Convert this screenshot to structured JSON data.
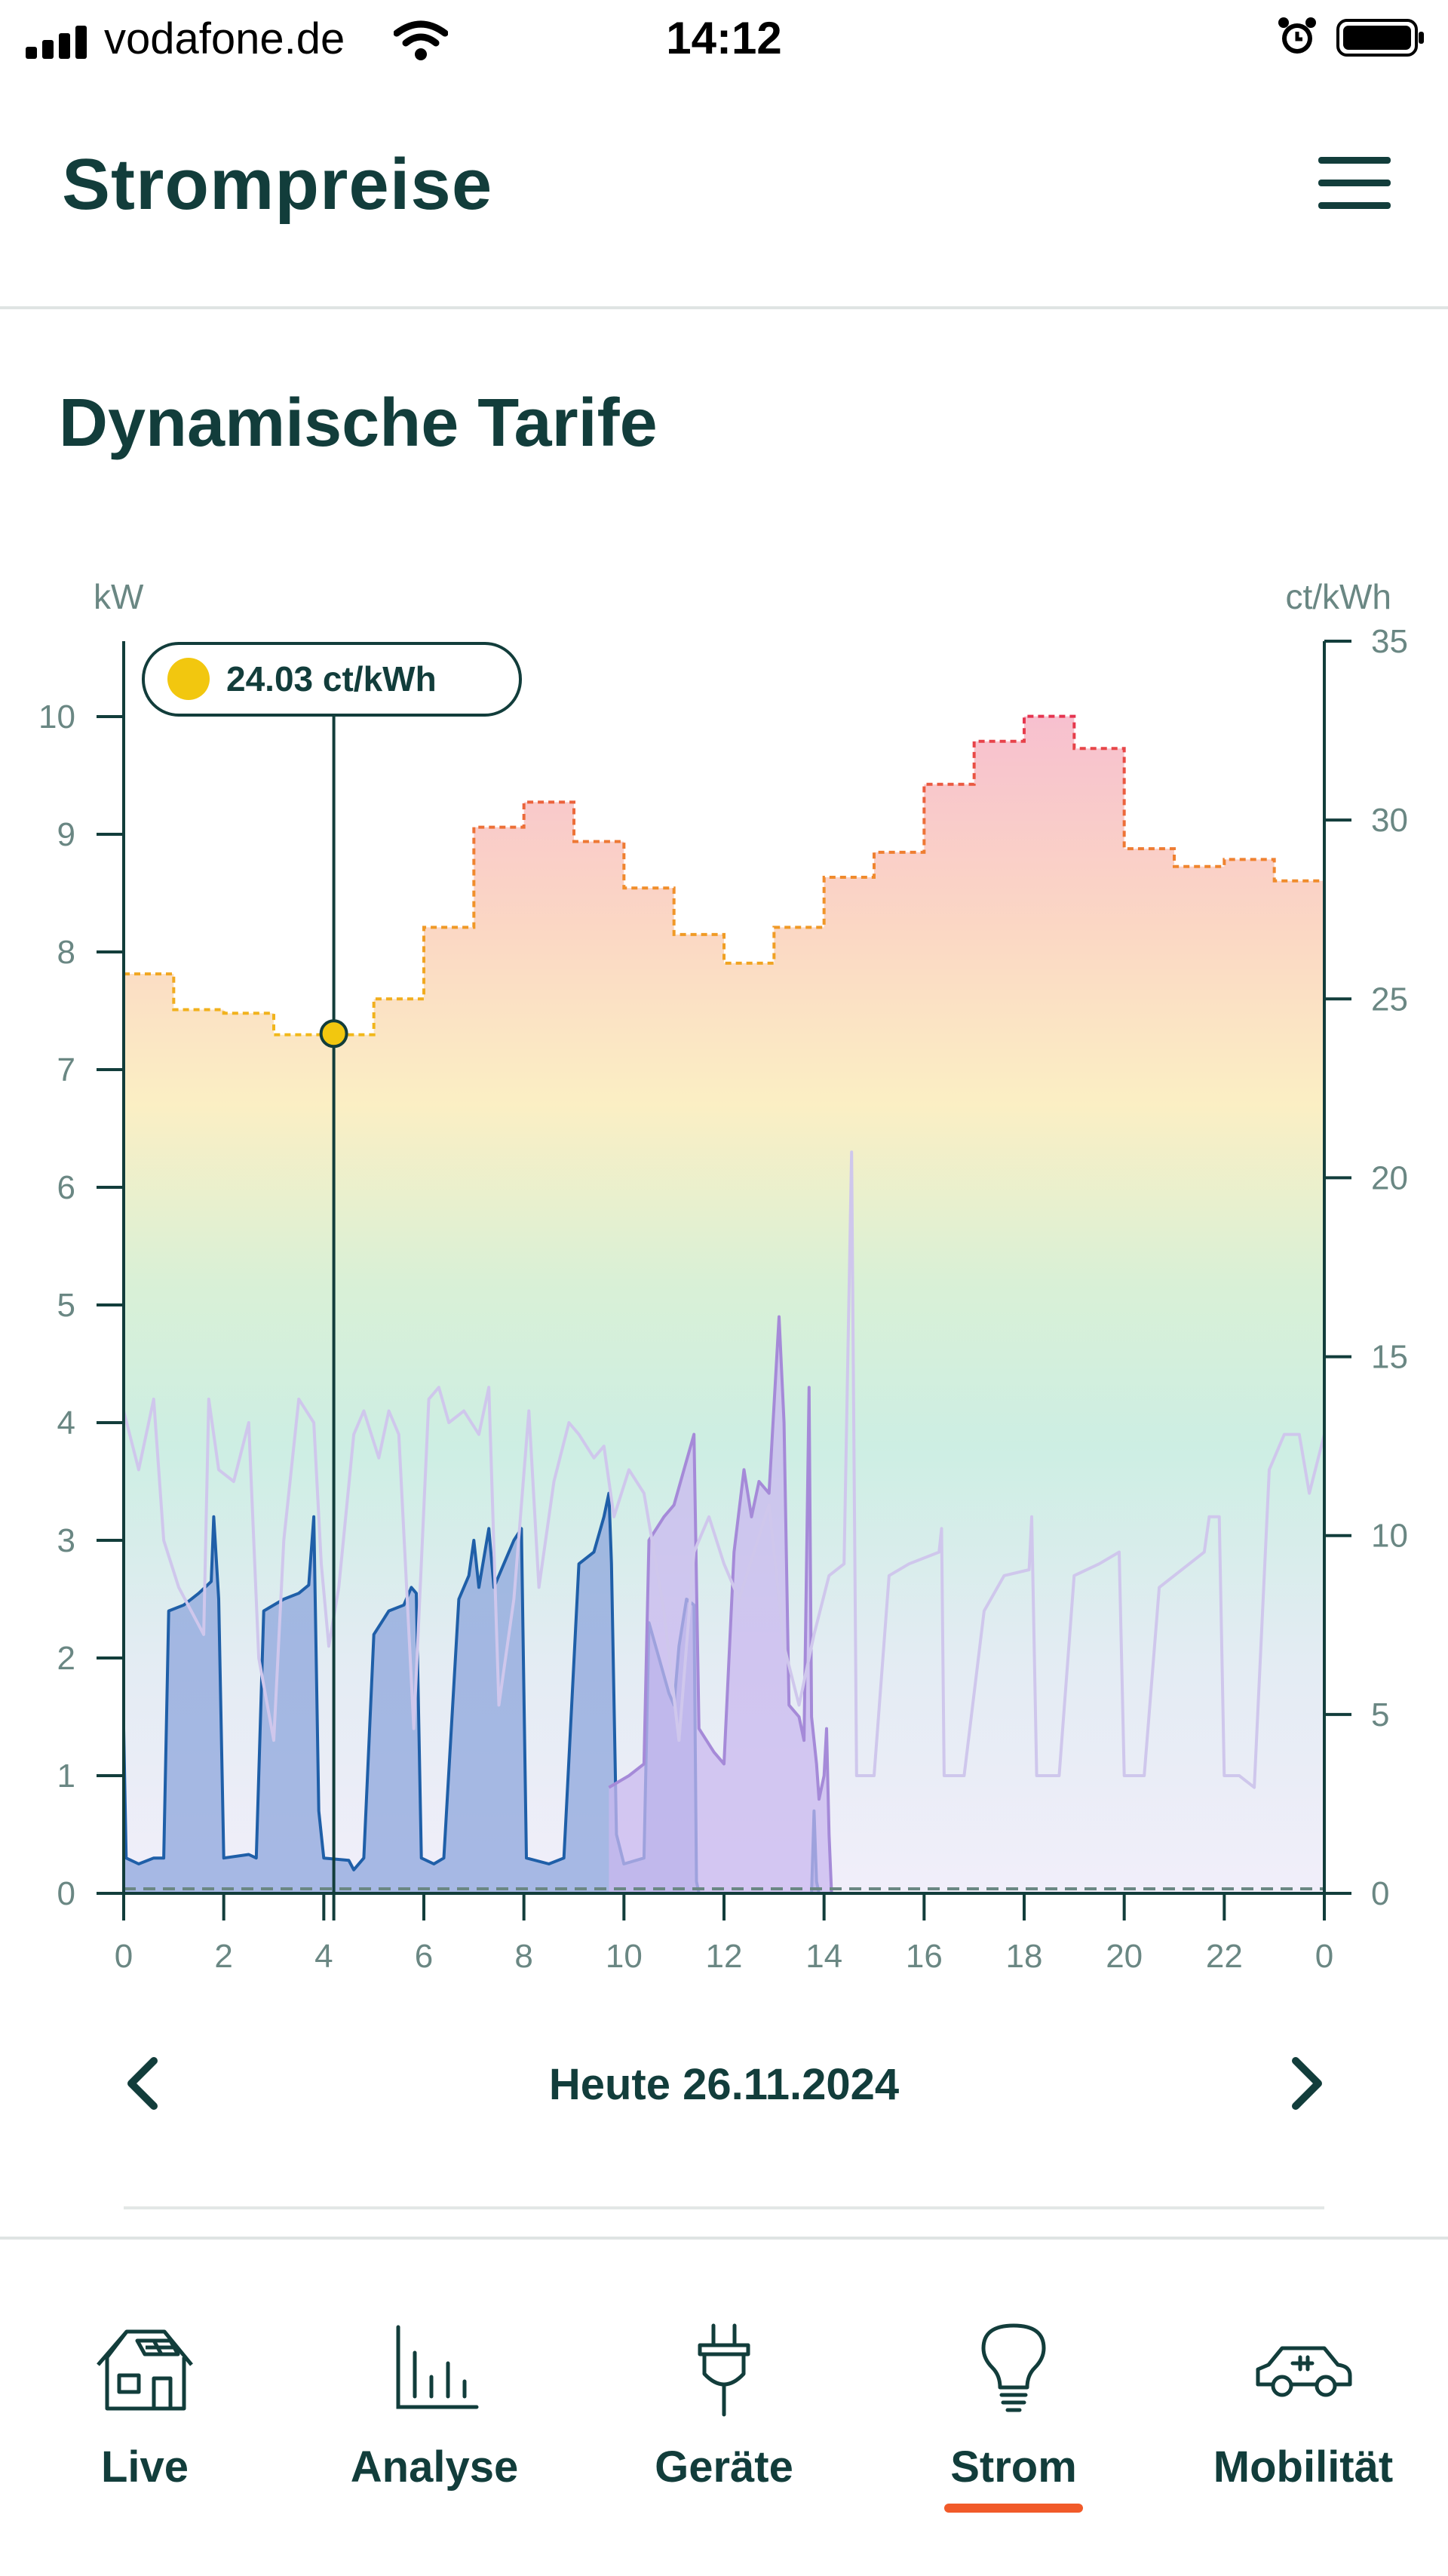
{
  "status_bar": {
    "carrier": "vodafone.de",
    "time": "14:12",
    "icons": [
      "signal-icon",
      "wifi-icon",
      "alarm-icon",
      "battery-icon"
    ]
  },
  "header": {
    "title": "Strompreise",
    "menu_icon": "hamburger-menu-icon"
  },
  "section": {
    "title": "Dynamische Tarife"
  },
  "chart": {
    "left_unit": "kW",
    "right_unit": "ct/kWh",
    "tooltip": "24.03 ct/kWh"
  },
  "chart_data": {
    "type": "line",
    "x_ticks": [
      "0",
      "2",
      "4",
      "6",
      "8",
      "10",
      "12",
      "14",
      "16",
      "18",
      "20",
      "22",
      "0"
    ],
    "y_left_ticks": [
      "0",
      "1",
      "2",
      "3",
      "4",
      "5",
      "6",
      "7",
      "8",
      "9",
      "10"
    ],
    "y_right_ticks": [
      "0",
      "5",
      "10",
      "15",
      "20",
      "25",
      "30",
      "35"
    ],
    "xlim": [
      0,
      24
    ],
    "ylim_left": [
      0,
      10
    ],
    "ylim_right": [
      0,
      35
    ],
    "selected_hour": 4.2,
    "selected_price": 24.03,
    "price_steps": [
      {
        "x0": 0,
        "x1": 1,
        "v": 25.7
      },
      {
        "x0": 1,
        "x1": 2,
        "v": 24.7
      },
      {
        "x0": 2,
        "x1": 3,
        "v": 24.6
      },
      {
        "x0": 3,
        "x1": 4,
        "v": 24.0
      },
      {
        "x0": 4,
        "x1": 5,
        "v": 24.0
      },
      {
        "x0": 5,
        "x1": 6,
        "v": 25.0
      },
      {
        "x0": 6,
        "x1": 7,
        "v": 27.0
      },
      {
        "x0": 7,
        "x1": 8,
        "v": 29.8
      },
      {
        "x0": 8,
        "x1": 9,
        "v": 30.5
      },
      {
        "x0": 9,
        "x1": 10,
        "v": 29.4
      },
      {
        "x0": 10,
        "x1": 11,
        "v": 28.1
      },
      {
        "x0": 11,
        "x1": 12,
        "v": 26.8
      },
      {
        "x0": 12,
        "x1": 13,
        "v": 26.0
      },
      {
        "x0": 13,
        "x1": 14,
        "v": 27.0
      },
      {
        "x0": 14,
        "x1": 15,
        "v": 28.4
      },
      {
        "x0": 15,
        "x1": 16,
        "v": 29.1
      },
      {
        "x0": 16,
        "x1": 17,
        "v": 31.0
      },
      {
        "x0": 17,
        "x1": 18,
        "v": 32.2
      },
      {
        "x0": 18,
        "x1": 19,
        "v": 32.9
      },
      {
        "x0": 19,
        "x1": 20,
        "v": 32.0
      },
      {
        "x0": 20,
        "x1": 21,
        "v": 29.2
      },
      {
        "x0": 21,
        "x1": 22,
        "v": 28.7
      },
      {
        "x0": 22,
        "x1": 23,
        "v": 28.9
      },
      {
        "x0": 23,
        "x1": 24,
        "v": 28.3
      }
    ],
    "series": [
      {
        "color": "#1f5fa8",
        "fill": "#8ea6dc",
        "points": [
          [
            0,
            1.4
          ],
          [
            0.05,
            0.3
          ],
          [
            0.3,
            0.25
          ],
          [
            0.6,
            0.3
          ],
          [
            0.8,
            0.3
          ],
          [
            0.9,
            2.4
          ],
          [
            1.2,
            2.45
          ],
          [
            1.5,
            2.55
          ],
          [
            1.75,
            2.65
          ],
          [
            1.8,
            3.2
          ],
          [
            1.9,
            2.5
          ],
          [
            2.0,
            0.3
          ],
          [
            2.5,
            0.33
          ],
          [
            2.65,
            0.3
          ],
          [
            2.8,
            2.4
          ],
          [
            3.2,
            2.5
          ],
          [
            3.5,
            2.55
          ],
          [
            3.7,
            2.62
          ],
          [
            3.8,
            3.2
          ],
          [
            3.9,
            0.7
          ],
          [
            4.0,
            0.3
          ],
          [
            4.5,
            0.28
          ],
          [
            4.6,
            0.2
          ],
          [
            4.8,
            0.3
          ],
          [
            5.0,
            2.2
          ],
          [
            5.3,
            2.4
          ],
          [
            5.6,
            2.45
          ],
          [
            5.75,
            2.6
          ],
          [
            5.85,
            2.55
          ],
          [
            5.95,
            0.3
          ],
          [
            6.2,
            0.25
          ],
          [
            6.4,
            0.3
          ],
          [
            6.7,
            2.5
          ],
          [
            6.9,
            2.7
          ],
          [
            7.0,
            3.0
          ],
          [
            7.1,
            2.6
          ],
          [
            7.3,
            3.1
          ],
          [
            7.4,
            2.6
          ],
          [
            7.6,
            2.8
          ],
          [
            7.8,
            3.0
          ],
          [
            7.95,
            3.1
          ],
          [
            8.05,
            0.3
          ],
          [
            8.5,
            0.25
          ],
          [
            8.8,
            0.3
          ],
          [
            9.1,
            2.8
          ],
          [
            9.4,
            2.9
          ],
          [
            9.6,
            3.2
          ],
          [
            9.7,
            3.4
          ],
          [
            9.75,
            2.8
          ],
          [
            9.85,
            0.5
          ],
          [
            10.0,
            0.25
          ],
          [
            10.4,
            0.3
          ],
          [
            10.5,
            2.3
          ],
          [
            10.7,
            2.0
          ],
          [
            10.9,
            1.7
          ],
          [
            11.0,
            1.6
          ],
          [
            11.1,
            2.1
          ],
          [
            11.25,
            2.5
          ],
          [
            11.4,
            2.45
          ],
          [
            11.45,
            0.1
          ],
          [
            11.5,
            0
          ],
          [
            13.75,
            0
          ],
          [
            13.8,
            0.7
          ],
          [
            13.85,
            0.1
          ],
          [
            13.9,
            0
          ]
        ]
      },
      {
        "color": "#a58ad8",
        "fill": "#c9b8ef",
        "points": [
          [
            9.7,
            0.9
          ],
          [
            10.1,
            1.0
          ],
          [
            10.4,
            1.1
          ],
          [
            10.5,
            3.0
          ],
          [
            10.8,
            3.2
          ],
          [
            11.0,
            3.3
          ],
          [
            11.2,
            3.6
          ],
          [
            11.4,
            3.9
          ],
          [
            11.5,
            1.4
          ],
          [
            11.8,
            1.2
          ],
          [
            12.0,
            1.1
          ],
          [
            12.2,
            2.9
          ],
          [
            12.4,
            3.6
          ],
          [
            12.55,
            3.2
          ],
          [
            12.7,
            3.5
          ],
          [
            12.9,
            3.4
          ],
          [
            13.1,
            4.9
          ],
          [
            13.2,
            4.0
          ],
          [
            13.3,
            1.6
          ],
          [
            13.5,
            1.5
          ],
          [
            13.6,
            1.3
          ],
          [
            13.7,
            4.3
          ],
          [
            13.75,
            1.5
          ],
          [
            13.85,
            1.1
          ],
          [
            13.9,
            0.8
          ],
          [
            14.0,
            1.0
          ],
          [
            14.05,
            1.4
          ],
          [
            14.1,
            0.5
          ],
          [
            14.15,
            0
          ]
        ]
      },
      {
        "color": "#cfc7ec",
        "points": [
          [
            0.0,
            4.1
          ],
          [
            0.3,
            3.6
          ],
          [
            0.6,
            4.2
          ],
          [
            0.8,
            3.0
          ],
          [
            1.1,
            2.6
          ],
          [
            1.6,
            2.2
          ],
          [
            1.7,
            4.2
          ],
          [
            1.9,
            3.6
          ],
          [
            2.2,
            3.5
          ],
          [
            2.5,
            4.0
          ],
          [
            2.7,
            2.0
          ],
          [
            3.0,
            1.3
          ],
          [
            3.2,
            3.0
          ],
          [
            3.5,
            4.2
          ],
          [
            3.8,
            4.0
          ],
          [
            3.95,
            2.8
          ],
          [
            4.1,
            2.1
          ],
          [
            4.3,
            2.6
          ],
          [
            4.6,
            3.9
          ],
          [
            4.8,
            4.1
          ],
          [
            5.1,
            3.7
          ],
          [
            5.3,
            4.1
          ],
          [
            5.5,
            3.9
          ],
          [
            5.8,
            1.4
          ],
          [
            6.1,
            4.2
          ],
          [
            6.3,
            4.3
          ],
          [
            6.5,
            4.0
          ],
          [
            6.8,
            4.1
          ],
          [
            7.1,
            3.9
          ],
          [
            7.3,
            4.3
          ],
          [
            7.5,
            1.6
          ],
          [
            7.8,
            2.5
          ],
          [
            8.1,
            4.1
          ],
          [
            8.3,
            2.6
          ],
          [
            8.6,
            3.5
          ],
          [
            8.9,
            4.0
          ],
          [
            9.1,
            3.9
          ],
          [
            9.4,
            3.7
          ],
          [
            9.6,
            3.8
          ],
          [
            9.8,
            3.2
          ],
          [
            10.1,
            3.6
          ],
          [
            10.4,
            3.4
          ],
          [
            10.8,
            2.4
          ],
          [
            11.1,
            1.3
          ],
          [
            11.4,
            2.9
          ],
          [
            11.7,
            3.2
          ],
          [
            12.0,
            2.8
          ],
          [
            12.3,
            2.5
          ],
          [
            12.6,
            2.9
          ],
          [
            12.9,
            3.3
          ],
          [
            13.2,
            2.1
          ],
          [
            13.5,
            1.6
          ],
          [
            13.8,
            2.2
          ],
          [
            14.1,
            2.7
          ],
          [
            14.4,
            2.8
          ],
          [
            14.55,
            6.3
          ],
          [
            14.65,
            1.0
          ],
          [
            15.0,
            1.0
          ],
          [
            15.3,
            2.7
          ],
          [
            15.7,
            2.8
          ],
          [
            16.3,
            2.9
          ],
          [
            16.35,
            3.1
          ],
          [
            16.4,
            1.0
          ],
          [
            16.8,
            1.0
          ],
          [
            17.2,
            2.4
          ],
          [
            17.6,
            2.7
          ],
          [
            18.1,
            2.75
          ],
          [
            18.15,
            3.2
          ],
          [
            18.25,
            1.0
          ],
          [
            18.7,
            1.0
          ],
          [
            19.0,
            2.7
          ],
          [
            19.5,
            2.8
          ],
          [
            19.9,
            2.9
          ],
          [
            20.0,
            1.0
          ],
          [
            20.4,
            1.0
          ],
          [
            20.7,
            2.6
          ],
          [
            21.0,
            2.7
          ],
          [
            21.3,
            2.8
          ],
          [
            21.6,
            2.9
          ],
          [
            21.7,
            3.2
          ],
          [
            21.9,
            3.2
          ],
          [
            22.0,
            1.0
          ],
          [
            22.3,
            1.0
          ],
          [
            22.6,
            0.9
          ],
          [
            22.9,
            3.6
          ],
          [
            23.2,
            3.9
          ],
          [
            23.5,
            3.9
          ],
          [
            23.7,
            3.4
          ],
          [
            24.0,
            3.9
          ]
        ]
      }
    ],
    "grid": false,
    "legend": "none"
  },
  "date_nav": {
    "label": "Heute 26.11.2024",
    "prev_icon": "chevron-left-icon",
    "next_icon": "chevron-right-icon"
  },
  "bottom_nav": {
    "items": [
      {
        "label": "Live",
        "icon": "house-solar-icon"
      },
      {
        "label": "Analyse",
        "icon": "bar-chart-icon"
      },
      {
        "label": "Geräte",
        "icon": "plug-icon"
      },
      {
        "label": "Strom",
        "icon": "lightbulb-icon"
      },
      {
        "label": "Mobilität",
        "icon": "electric-car-icon"
      }
    ],
    "active_index": 3,
    "active_color": "#f15a29"
  },
  "colors": {
    "text_primary": "#123d3b",
    "axis": "#123d3b",
    "tooltip_dot": "#f2c70f"
  }
}
